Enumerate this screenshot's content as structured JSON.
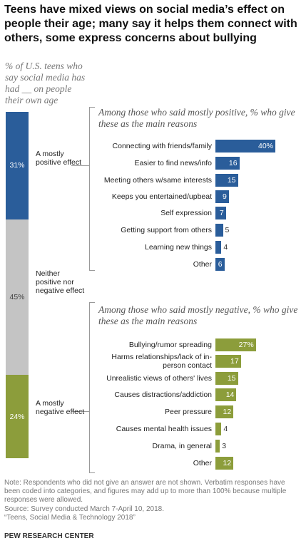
{
  "title": "Teens have mixed views on social media’s effect on people their age; many say it helps them connect with others, some express concerns about bullying",
  "subtitle": "% of U.S. teens who say social media has had __ on people their own age",
  "chart_data": [
    {
      "type": "stacked_bar",
      "categories": [
        "A mostly positive effect",
        "Neither positive nor negative effect",
        "A mostly negative effect"
      ],
      "values": [
        31,
        45,
        24
      ],
      "value_labels": [
        "31%",
        "45%",
        "24%"
      ],
      "colors": [
        "#2a5d9a",
        "#c4c4c4",
        "#8c9d3b"
      ]
    },
    {
      "type": "bar",
      "title": "Among those who said mostly positive, % who give these as the main reasons",
      "categories": [
        "Connecting with friends/family",
        "Easier to find news/info",
        "Meeting others w/same interests",
        "Keeps you entertained/upbeat",
        "Self expression",
        "Getting support from others",
        "Learning new things",
        "Other"
      ],
      "values": [
        40,
        16,
        15,
        9,
        7,
        5,
        4,
        6
      ],
      "value_labels": [
        "40%",
        "16",
        "15",
        "9",
        "7",
        "5",
        "4",
        "6"
      ],
      "color": "#2a5d9a"
    },
    {
      "type": "bar",
      "title": "Among those who said mostly negative, % who give these as the main reasons",
      "categories": [
        "Bullying/rumor spreading",
        "Harms relationships/lack of in-person contact",
        "Unrealistic views of others' lives",
        "Causes distractions/addiction",
        "Peer pressure",
        "Causes mental health issues",
        "Drama, in general",
        "Other"
      ],
      "values": [
        27,
        17,
        15,
        14,
        12,
        4,
        3,
        12
      ],
      "value_labels": [
        "27%",
        "17",
        "15",
        "14",
        "12",
        "4",
        "3",
        "12"
      ],
      "color": "#8c9d3b"
    }
  ],
  "note": "Note: Respondents who did not give an answer are not shown. Verbatim responses have been coded into categories, and figures may add up to more than 100% because multiple responses were allowed.",
  "source": "Source: Survey conducted March 7-April 10, 2018.",
  "report": "“Teens, Social Media & Technology 2018”",
  "brand": "PEW RESEARCH CENTER"
}
